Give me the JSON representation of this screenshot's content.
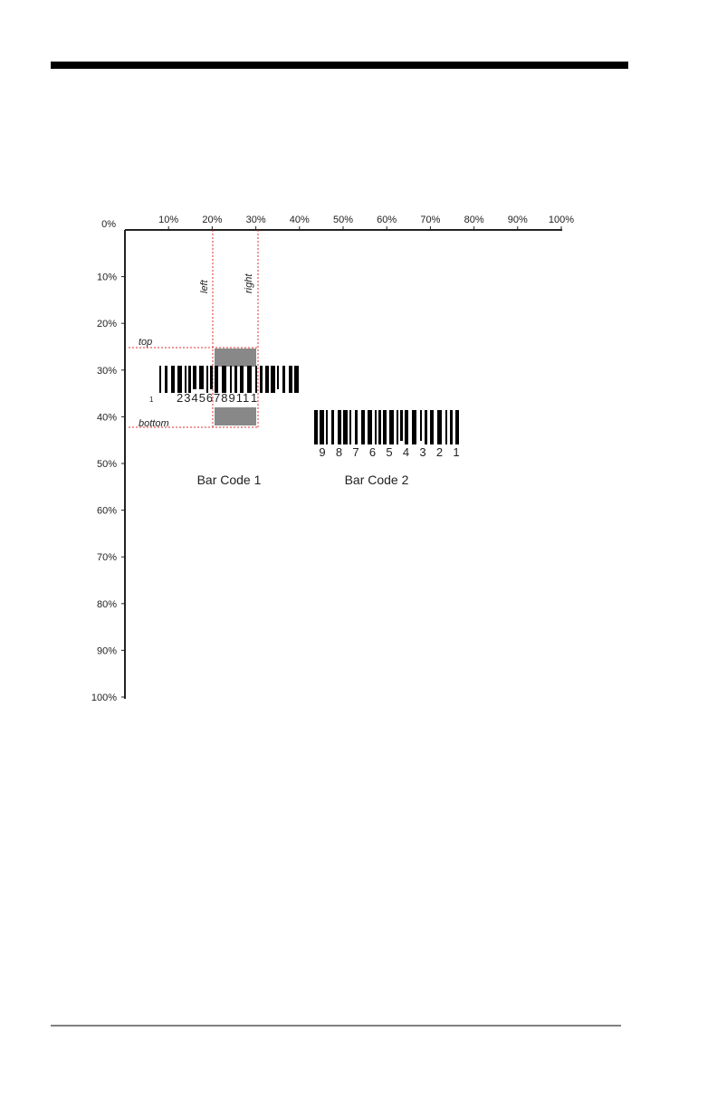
{
  "figure": {
    "origin_label": "0%",
    "x_labels": [
      "10%",
      "20%",
      "30%",
      "40%",
      "50%",
      "60%",
      "70%",
      "80%",
      "90%",
      "100%"
    ],
    "y_labels": [
      "10%",
      "20%",
      "30%",
      "40%",
      "50%",
      "60%",
      "70%",
      "80%",
      "90%",
      "100%"
    ],
    "guides": {
      "left": "left",
      "right": "right",
      "top": "top",
      "bottom": "bottom"
    },
    "barcode1": {
      "digits": [
        "1",
        "23456",
        "78911",
        "1"
      ],
      "caption": "Bar Code 1"
    },
    "barcode2": {
      "digits": [
        "9",
        "8",
        "7",
        "6",
        "5",
        "4",
        "3",
        "2",
        "1"
      ],
      "caption": "Bar Code 2"
    }
  }
}
